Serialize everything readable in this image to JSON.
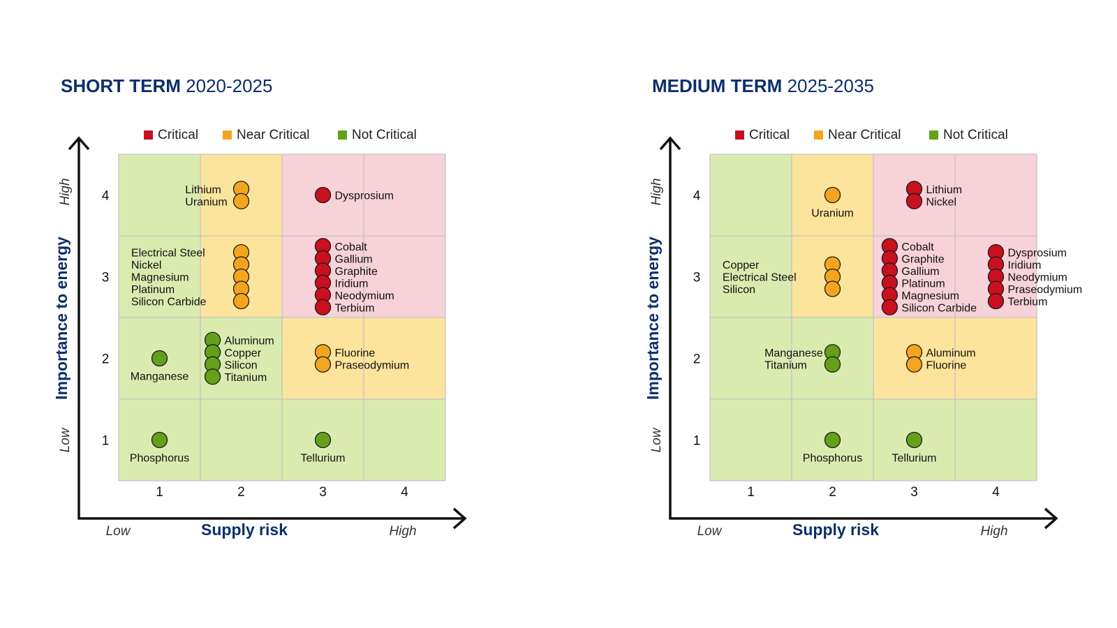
{
  "colors": {
    "critical": "#c8101e",
    "near_critical": "#f3a51d",
    "not_critical": "#64a019",
    "zone_critical": "#f7d2d8",
    "zone_near": "#fde49c",
    "zone_not": "#daebb0",
    "title": "#0c2f6b",
    "axis": "#111111"
  },
  "legend": {
    "critical": "Critical",
    "near_critical": "Near Critical",
    "not_critical": "Not Critical"
  },
  "axes": {
    "y_title": "Importance to energy",
    "x_title": "Supply risk",
    "y_low": "Low",
    "y_high": "High",
    "x_low": "Low",
    "x_high": "High"
  },
  "chart_data": [
    {
      "type": "scatter",
      "title_bold": "SHORT TERM",
      "title_period": "2020-2025",
      "xlabel": "Supply risk",
      "ylabel": "Importance to energy",
      "xlim": [
        0.5,
        4.5
      ],
      "ylim": [
        0.5,
        4.5
      ],
      "x_ticks": [
        "1",
        "2",
        "3",
        "4"
      ],
      "y_ticks": [
        "1",
        "2",
        "3",
        "4"
      ],
      "legend": [
        "Critical",
        "Near Critical",
        "Not Critical"
      ],
      "legend_position": "top",
      "zones": [
        [
          "not",
          "near",
          "critical",
          "critical"
        ],
        [
          "not",
          "near",
          "critical",
          "critical"
        ],
        [
          "not",
          "not",
          "near",
          "near"
        ],
        [
          "not",
          "not",
          "not",
          "not"
        ]
      ],
      "groups": [
        {
          "x": 2,
          "y": 4,
          "status": "near_critical",
          "label_side": "left",
          "items": [
            "Lithium",
            "Uranium"
          ]
        },
        {
          "x": 3,
          "y": 4,
          "status": "critical",
          "label_side": "right",
          "items": [
            "Dysprosium"
          ]
        },
        {
          "x": 2,
          "y": 3,
          "status": "near_critical",
          "label_side": "left",
          "items": [
            "Electrical Steel",
            "Nickel",
            "Magnesium",
            "Platinum",
            "Silicon Carbide"
          ]
        },
        {
          "x": 3,
          "y": 3,
          "status": "critical",
          "label_side": "right",
          "items": [
            "Cobalt",
            "Gallium",
            "Graphite",
            "Iridium",
            "Neodymium",
            "Terbium"
          ]
        },
        {
          "x": 1,
          "y": 2,
          "status": "not_critical",
          "label_side": "below",
          "items": [
            "Manganese"
          ]
        },
        {
          "x": 1.65,
          "y": 2,
          "status": "not_critical",
          "label_side": "right",
          "items": [
            "Aluminum",
            "Copper",
            "Silicon",
            "Titanium"
          ]
        },
        {
          "x": 3,
          "y": 2,
          "status": "near_critical",
          "label_side": "right",
          "items": [
            "Fluorine",
            "Praseodymium"
          ]
        },
        {
          "x": 1,
          "y": 1,
          "status": "not_critical",
          "label_side": "below",
          "items": [
            "Phosphorus"
          ]
        },
        {
          "x": 3,
          "y": 1,
          "status": "not_critical",
          "label_side": "below",
          "items": [
            "Tellurium"
          ]
        }
      ]
    },
    {
      "type": "scatter",
      "title_bold": "MEDIUM TERM",
      "title_period": "2025-2035",
      "xlabel": "Supply risk",
      "ylabel": "Importance to energy",
      "xlim": [
        0.5,
        4.5
      ],
      "ylim": [
        0.5,
        4.5
      ],
      "x_ticks": [
        "1",
        "2",
        "3",
        "4"
      ],
      "y_ticks": [
        "1",
        "2",
        "3",
        "4"
      ],
      "legend": [
        "Critical",
        "Near Critical",
        "Not Critical"
      ],
      "legend_position": "top",
      "zones": [
        [
          "not",
          "near",
          "critical",
          "critical"
        ],
        [
          "not",
          "near",
          "critical",
          "critical"
        ],
        [
          "not",
          "not",
          "near",
          "near"
        ],
        [
          "not",
          "not",
          "not",
          "not"
        ]
      ],
      "groups": [
        {
          "x": 2,
          "y": 4,
          "status": "near_critical",
          "label_side": "below",
          "items": [
            "Uranium"
          ]
        },
        {
          "x": 3,
          "y": 4,
          "status": "critical",
          "label_side": "right",
          "items": [
            "Lithium",
            "Nickel"
          ]
        },
        {
          "x": 2,
          "y": 3,
          "status": "near_critical",
          "label_side": "left",
          "items": [
            "Copper",
            "Electrical Steel",
            "Silicon"
          ]
        },
        {
          "x": 2.7,
          "y": 3,
          "status": "critical",
          "label_side": "right",
          "items": [
            "Cobalt",
            "Graphite",
            "Gallium",
            "Platinum",
            "Magnesium",
            "Silicon Carbide"
          ]
        },
        {
          "x": 4,
          "y": 3,
          "status": "critical",
          "label_side": "right",
          "items": [
            "Dysprosium",
            "Iridium",
            "Neodymium",
            "Praseodymium",
            "Terbium"
          ]
        },
        {
          "x": 2,
          "y": 2,
          "status": "not_critical",
          "label_side": "left",
          "items": [
            "Manganese",
            "Titanium"
          ]
        },
        {
          "x": 3,
          "y": 2,
          "status": "near_critical",
          "label_side": "right",
          "items": [
            "Aluminum",
            "Fluorine"
          ]
        },
        {
          "x": 2,
          "y": 1,
          "status": "not_critical",
          "label_side": "below",
          "items": [
            "Phosphorus"
          ]
        },
        {
          "x": 3,
          "y": 1,
          "status": "not_critical",
          "label_side": "below",
          "items": [
            "Tellurium"
          ]
        }
      ]
    }
  ]
}
